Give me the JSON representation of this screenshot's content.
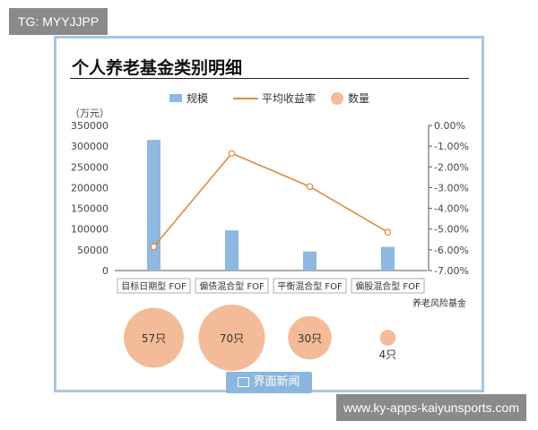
{
  "overlay": {
    "top_tag": "TG: MYYJJPP",
    "bottom_tag": "www.ky-apps-kaiyunsports.com"
  },
  "brand": {
    "badge_label": "界面新闻"
  },
  "colors": {
    "bar": "#8db8e0",
    "line": "#e08a3c",
    "bubble": "#f3bb97",
    "axis": "#555555",
    "grid": "#bbbbbb"
  },
  "chart_data": {
    "type": "bar",
    "title": "个人养老基金类别明细",
    "categories": [
      "目标日期型 FOF",
      "偏债混合型 FOF",
      "平衡混合型 FOF",
      "偏股混合型 FOF"
    ],
    "category_group_label": "养老风险基金",
    "y_unit_label": "（万元）",
    "ylim": [
      0,
      350000
    ],
    "yticks": [
      "0",
      "50000",
      "100000",
      "150000",
      "200000",
      "250000",
      "300000",
      "350000"
    ],
    "y2lim": [
      -7.0,
      0.0
    ],
    "y2ticks": [
      "0.00%",
      "-1.00%",
      "-2.00%",
      "-3.00%",
      "-4.00%",
      "-5.00%",
      "-6.00%",
      "-7.00%"
    ],
    "legend_position": "top",
    "grid": false,
    "series": [
      {
        "name": "规模",
        "type": "bar",
        "axis": "left",
        "values": [
          315000,
          97000,
          46000,
          57000
        ]
      },
      {
        "name": "平均收益率",
        "type": "line",
        "axis": "right",
        "values": [
          -5.85,
          -1.35,
          -2.95,
          -5.15
        ]
      },
      {
        "name": "数量",
        "type": "bubble",
        "values": [
          57,
          70,
          30,
          4
        ],
        "labels": [
          "57只",
          "70只",
          "30只",
          "4只"
        ]
      }
    ]
  }
}
